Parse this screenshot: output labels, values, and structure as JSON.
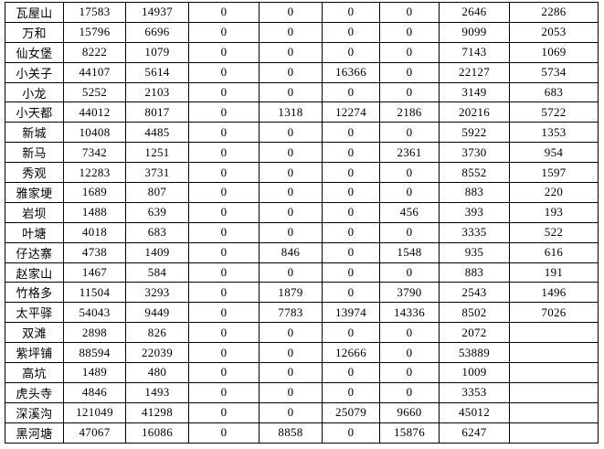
{
  "table": {
    "rows": [
      {
        "label": "瓦屋山",
        "values": [
          "17583",
          "14937",
          "0",
          "0",
          "0",
          "0",
          "2646",
          "2286"
        ]
      },
      {
        "label": "万和",
        "values": [
          "15796",
          "6696",
          "0",
          "0",
          "0",
          "0",
          "9099",
          "2053"
        ]
      },
      {
        "label": "仙女堡",
        "values": [
          "8222",
          "1079",
          "0",
          "0",
          "0",
          "0",
          "7143",
          "1069"
        ]
      },
      {
        "label": "小关子",
        "values": [
          "44107",
          "5614",
          "0",
          "0",
          "16366",
          "0",
          "22127",
          "5734"
        ]
      },
      {
        "label": "小龙",
        "values": [
          "5252",
          "2103",
          "0",
          "0",
          "0",
          "0",
          "3149",
          "683"
        ]
      },
      {
        "label": "小天都",
        "values": [
          "44012",
          "8017",
          "0",
          "1318",
          "12274",
          "2186",
          "20216",
          "5722"
        ]
      },
      {
        "label": "新城",
        "values": [
          "10408",
          "4485",
          "0",
          "0",
          "0",
          "0",
          "5922",
          "1353"
        ]
      },
      {
        "label": "新马",
        "values": [
          "7342",
          "1251",
          "0",
          "0",
          "0",
          "2361",
          "3730",
          "954"
        ]
      },
      {
        "label": "秀观",
        "values": [
          "12283",
          "3731",
          "0",
          "0",
          "0",
          "0",
          "8552",
          "1597"
        ]
      },
      {
        "label": "雅家埂",
        "values": [
          "1689",
          "807",
          "0",
          "0",
          "0",
          "0",
          "883",
          "220"
        ]
      },
      {
        "label": "岩坝",
        "values": [
          "1488",
          "639",
          "0",
          "0",
          "0",
          "456",
          "393",
          "193"
        ]
      },
      {
        "label": "叶塘",
        "values": [
          "4018",
          "683",
          "0",
          "0",
          "0",
          "0",
          "3335",
          "522"
        ]
      },
      {
        "label": "仔达寨",
        "values": [
          "4738",
          "1409",
          "0",
          "846",
          "0",
          "1548",
          "935",
          "616"
        ]
      },
      {
        "label": "赵家山",
        "values": [
          "1467",
          "584",
          "0",
          "0",
          "0",
          "0",
          "883",
          "191"
        ]
      },
      {
        "label": "竹格多",
        "values": [
          "11504",
          "3293",
          "0",
          "1879",
          "0",
          "3790",
          "2543",
          "1496"
        ]
      },
      {
        "label": "太平驿",
        "values": [
          "54043",
          "9449",
          "0",
          "7783",
          "13974",
          "14336",
          "8502",
          "7026"
        ]
      },
      {
        "label": "双滩",
        "values": [
          "2898",
          "826",
          "0",
          "0",
          "0",
          "0",
          "2072",
          ""
        ]
      },
      {
        "label": "紫坪铺",
        "values": [
          "88594",
          "22039",
          "0",
          "0",
          "12666",
          "0",
          "53889",
          ""
        ]
      },
      {
        "label": "高坑",
        "values": [
          "1489",
          "480",
          "0",
          "0",
          "0",
          "0",
          "1009",
          ""
        ]
      },
      {
        "label": "虎头寺",
        "values": [
          "4846",
          "1493",
          "0",
          "0",
          "0",
          "0",
          "3353",
          ""
        ]
      },
      {
        "label": "深溪沟",
        "values": [
          "121049",
          "41298",
          "0",
          "0",
          "25079",
          "9660",
          "45012",
          ""
        ]
      },
      {
        "label": "黑河塘",
        "values": [
          "47067",
          "16086",
          "0",
          "8858",
          "0",
          "15876",
          "6247",
          ""
        ]
      }
    ]
  }
}
